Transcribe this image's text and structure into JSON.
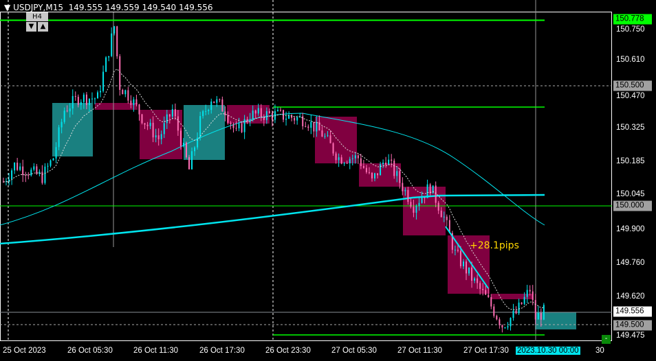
{
  "header": {
    "symbol": "USDJPY,M15",
    "ohlc": "149.555 149.559 149.540 149.556",
    "timeframe_button": "H4",
    "down_arrow": "▼",
    "up_arrow": "▲",
    "menu_arrow": "▼"
  },
  "y_axis": {
    "ticks": [
      "150.750",
      "150.610",
      "150.470",
      "150.325",
      "150.185",
      "150.045",
      "149.900",
      "149.760",
      "149.620",
      "149.475"
    ],
    "tags": [
      {
        "text": "150.778",
        "price": 150.778,
        "color": "#00ff00"
      },
      {
        "text": "150.500",
        "price": 150.5,
        "color": "#a0a0a0"
      },
      {
        "text": "150.000",
        "price": 150.0,
        "color": "#a0a0a0"
      },
      {
        "text": "149.556",
        "price": 149.556,
        "color": "#ffffff"
      },
      {
        "text": "149.500",
        "price": 149.5,
        "color": "#a0a0a0"
      }
    ]
  },
  "x_axis": {
    "ticks": [
      "25 Oct 2023",
      "26 Oct 05:30",
      "26 Oct 11:30",
      "26 Oct 17:30",
      "26 Oct 23:30",
      "27 Oct 05:30",
      "27 Oct 11:30",
      "27 Oct 17:30",
      "30"
    ],
    "cursor_time": "2023.10.30 00:00"
  },
  "annotation": "+28.1pips",
  "collapse_button": "-",
  "colors": {
    "bull": "#00e5ee",
    "bear": "#ff6eb4",
    "level": "#00ff00",
    "bull_box": "#1a8080",
    "bear_box": "#800040",
    "ma": "#00e5ee"
  },
  "chart_data": {
    "type": "candlestick",
    "symbol": "USDJPY",
    "timeframe": "M15",
    "path": [
      [
        0,
        150.1
      ],
      [
        4,
        150.17
      ],
      [
        14,
        150.12
      ],
      [
        18,
        150.2
      ],
      [
        22,
        150.4
      ],
      [
        27,
        150.45
      ],
      [
        34,
        150.45
      ],
      [
        39,
        150.7
      ],
      [
        40,
        150.75
      ],
      [
        42,
        150.5
      ],
      [
        46,
        150.45
      ],
      [
        51,
        150.35
      ],
      [
        56,
        150.28
      ],
      [
        61,
        150.4
      ],
      [
        67,
        150.15
      ],
      [
        71,
        150.35
      ],
      [
        75,
        150.45
      ],
      [
        80,
        150.4
      ],
      [
        84,
        150.3
      ],
      [
        89,
        150.38
      ],
      [
        98,
        150.38
      ],
      [
        109,
        150.36
      ],
      [
        115,
        150.3
      ],
      [
        121,
        150.2
      ],
      [
        128,
        150.2
      ],
      [
        133,
        150.1
      ],
      [
        138,
        150.2
      ],
      [
        143,
        150.1
      ],
      [
        148,
        150.0
      ],
      [
        154,
        150.08
      ],
      [
        159,
        149.95
      ],
      [
        163,
        149.8
      ],
      [
        170,
        149.68
      ],
      [
        175,
        149.6
      ],
      [
        180,
        149.5
      ],
      [
        185,
        149.55
      ],
      [
        190,
        149.65
      ],
      [
        192,
        149.53
      ],
      [
        195,
        149.556
      ]
    ]
  }
}
